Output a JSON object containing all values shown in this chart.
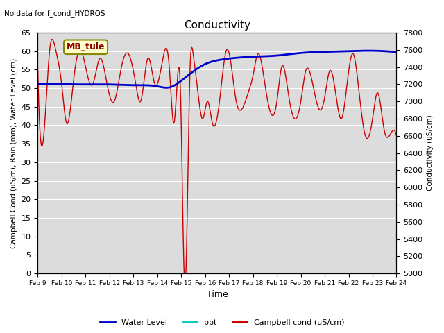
{
  "title": "Conductivity",
  "top_left_text": "No data for f_cond_HYDROS",
  "ylabel_left": "Campbell Cond (uS/m), Rain (mm), Water Level (cm)",
  "ylabel_right": "Conductivity (uS/cm)",
  "xlabel": "Time",
  "ylim_left": [
    0,
    65
  ],
  "ylim_right": [
    5000,
    7800
  ],
  "bg_color": "#dcdcdc",
  "annotation_box": "MB_tule",
  "x_ticks": [
    "Feb 9",
    "Feb 10",
    "Feb 11",
    "Feb 12",
    "Feb 13",
    "Feb 14",
    "Feb 15",
    "Feb 16",
    "Feb 17",
    "Feb 18",
    "Feb 19",
    "Feb 20",
    "Feb 21",
    "Feb 22",
    "Feb 23",
    "Feb 24"
  ],
  "water_level_color": "#0000cc",
  "ppt_color": "#00cccc",
  "campbell_color": "#cc0000",
  "legend_labels": [
    "Water Level",
    "ppt",
    "Campbell cond (uS/cm)"
  ],
  "figsize": [
    6.4,
    4.8
  ],
  "dpi": 100
}
